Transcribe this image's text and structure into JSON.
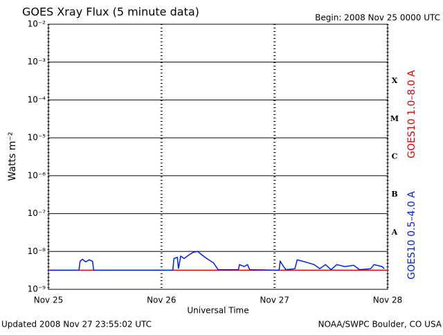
{
  "chart_data": {
    "type": "line",
    "title": "GOES Xray Flux (5 minute data)",
    "begin": "Begin:  2008 Nov 25 0000 UTC",
    "y_label": "Watts m⁻²",
    "x_label": "Universal Time",
    "updated": "Updated 2008 Nov 27 23:55:02 UTC",
    "source": "NOAA/SWPC Boulder, CO USA",
    "log_y": true,
    "grid": true,
    "xlim": [
      0,
      3
    ],
    "xticks": [
      {
        "value": 0,
        "label": "Nov 25"
      },
      {
        "value": 1,
        "label": "Nov 26"
      },
      {
        "value": 2,
        "label": "Nov 27"
      },
      {
        "value": 3,
        "label": "Nov 28"
      }
    ],
    "ylim": [
      1e-09,
      0.01
    ],
    "yticks": [
      {
        "value": 1e-09,
        "label": "10⁻⁹"
      },
      {
        "value": 1e-08,
        "label": "10⁻⁸"
      },
      {
        "value": 1e-07,
        "label": "10⁻⁷"
      },
      {
        "value": 1e-06,
        "label": "10⁻⁶"
      },
      {
        "value": 1e-05,
        "label": "10⁻⁵"
      },
      {
        "value": 0.0001,
        "label": "10⁻⁴"
      },
      {
        "value": 0.001,
        "label": "10⁻³"
      },
      {
        "value": 0.01,
        "label": "10⁻²"
      }
    ],
    "flare_classes": [
      {
        "label": "A",
        "value": 1e-08
      },
      {
        "label": "B",
        "value": 1e-07
      },
      {
        "label": "C",
        "value": 1e-06
      },
      {
        "label": "M",
        "value": 1e-05
      },
      {
        "label": "X",
        "value": 0.0001
      }
    ],
    "series": [
      {
        "name": "GOES10 1.0–8.0 A",
        "color": "#e00000",
        "x": [
          0,
          0.5,
          1,
          1.5,
          2,
          2.5,
          3
        ],
        "values": [
          3.2e-09,
          3.2e-09,
          3.2e-09,
          3.2e-09,
          3.2e-09,
          3.2e-09,
          3.2e-09
        ]
      },
      {
        "name": "GOES10 0.5–4.0 A",
        "color": "#0020e0",
        "x": [
          0,
          0.27,
          0.28,
          0.3,
          0.33,
          0.36,
          0.39,
          0.4,
          1.1,
          1.11,
          1.14,
          1.15,
          1.17,
          1.2,
          1.24,
          1.28,
          1.32,
          1.36,
          1.4,
          1.46,
          1.5,
          1.68,
          1.69,
          1.73,
          1.76,
          1.78,
          2.04,
          2.05,
          2.08,
          2.1,
          2.18,
          2.2,
          2.25,
          2.3,
          2.35,
          2.4,
          2.45,
          2.5,
          2.55,
          2.62,
          2.7,
          2.75,
          2.85,
          2.88,
          2.95,
          2.97
        ],
        "values": [
          3.2e-09,
          3.2e-09,
          5.5e-09,
          6.2e-09,
          5.3e-09,
          6e-09,
          5.5e-09,
          3.2e-09,
          3.2e-09,
          6.5e-09,
          7e-09,
          3.5e-09,
          7.5e-09,
          6.5e-09,
          8e-09,
          9.5e-09,
          1e-08,
          8e-09,
          6.5e-09,
          5e-09,
          3.3e-09,
          3.3e-09,
          4.5e-09,
          4e-09,
          4.5e-09,
          3.3e-09,
          3.2e-09,
          5.5e-09,
          4e-09,
          3.3e-09,
          3.5e-09,
          6e-09,
          5.5e-09,
          5e-09,
          4.5e-09,
          3.5e-09,
          4.5e-09,
          3.3e-09,
          4.5e-09,
          4e-09,
          4.3e-09,
          3.3e-09,
          3.5e-09,
          4.5e-09,
          4e-09,
          3.5e-09
        ]
      }
    ]
  }
}
